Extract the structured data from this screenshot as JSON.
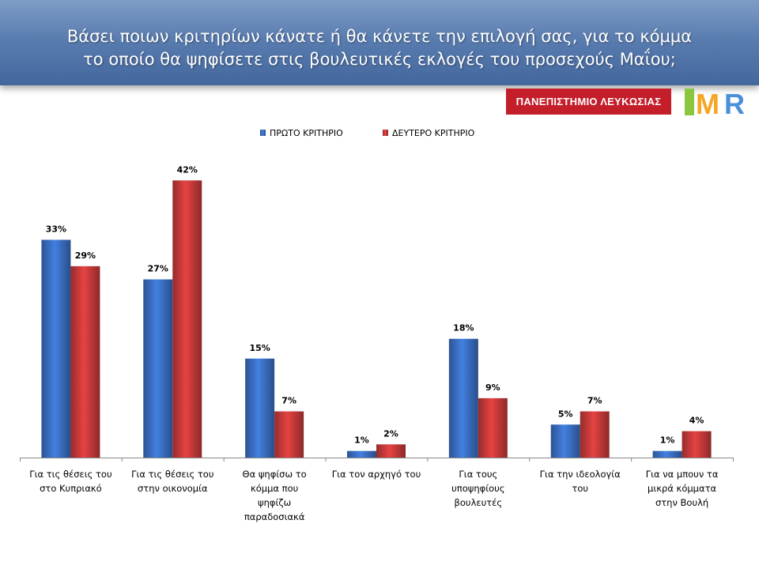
{
  "header": {
    "title_line1": "Βάσει ποιων κριτηρίων κάνατε ή θα κάνετε την επιλογή σας, για το κόμμα",
    "title_line2": "το οποίο θα ψηφίσετε στις βουλευτικές εκλογές του προσεχούς Μαΐου;"
  },
  "logos": {
    "university": "ΠΑΝΕΠΙΣΤΗΜΙΟ ΛΕΥΚΩΣΙΑΣ",
    "imr": "IMR"
  },
  "chart_data": {
    "type": "bar",
    "categories": [
      [
        "Για τις θέσεις του",
        "στο Κυπριακό"
      ],
      [
        "Για τις θέσεις του",
        "στην οικονομία"
      ],
      [
        "Θα ψηφίσω το",
        "κόμμα που",
        "ψηφίζω",
        "παραδοσιακά"
      ],
      [
        "Για τον αρχηγό του"
      ],
      [
        "Για τους",
        "υποψηφίους",
        "βουλευτές"
      ],
      [
        "Για την ιδεολογία",
        "του"
      ],
      [
        "Για να μπουν τα",
        "μικρά κόμματα",
        "στην Βουλή"
      ]
    ],
    "series": [
      {
        "name": "ΠΡΩΤΟ ΚΡΙΤΗΡΙΟ",
        "values": [
          33,
          27,
          15,
          1,
          18,
          5,
          1
        ],
        "color": "#3a6fc4"
      },
      {
        "name": "ΔΕΥΤΕΡΟ ΚΡΙΤΗΡΙΟ",
        "values": [
          29,
          42,
          7,
          2,
          9,
          7,
          4
        ],
        "color": "#c83a3a"
      }
    ],
    "value_suffix": "%",
    "ylim": [
      0,
      42
    ],
    "legend": "top"
  }
}
